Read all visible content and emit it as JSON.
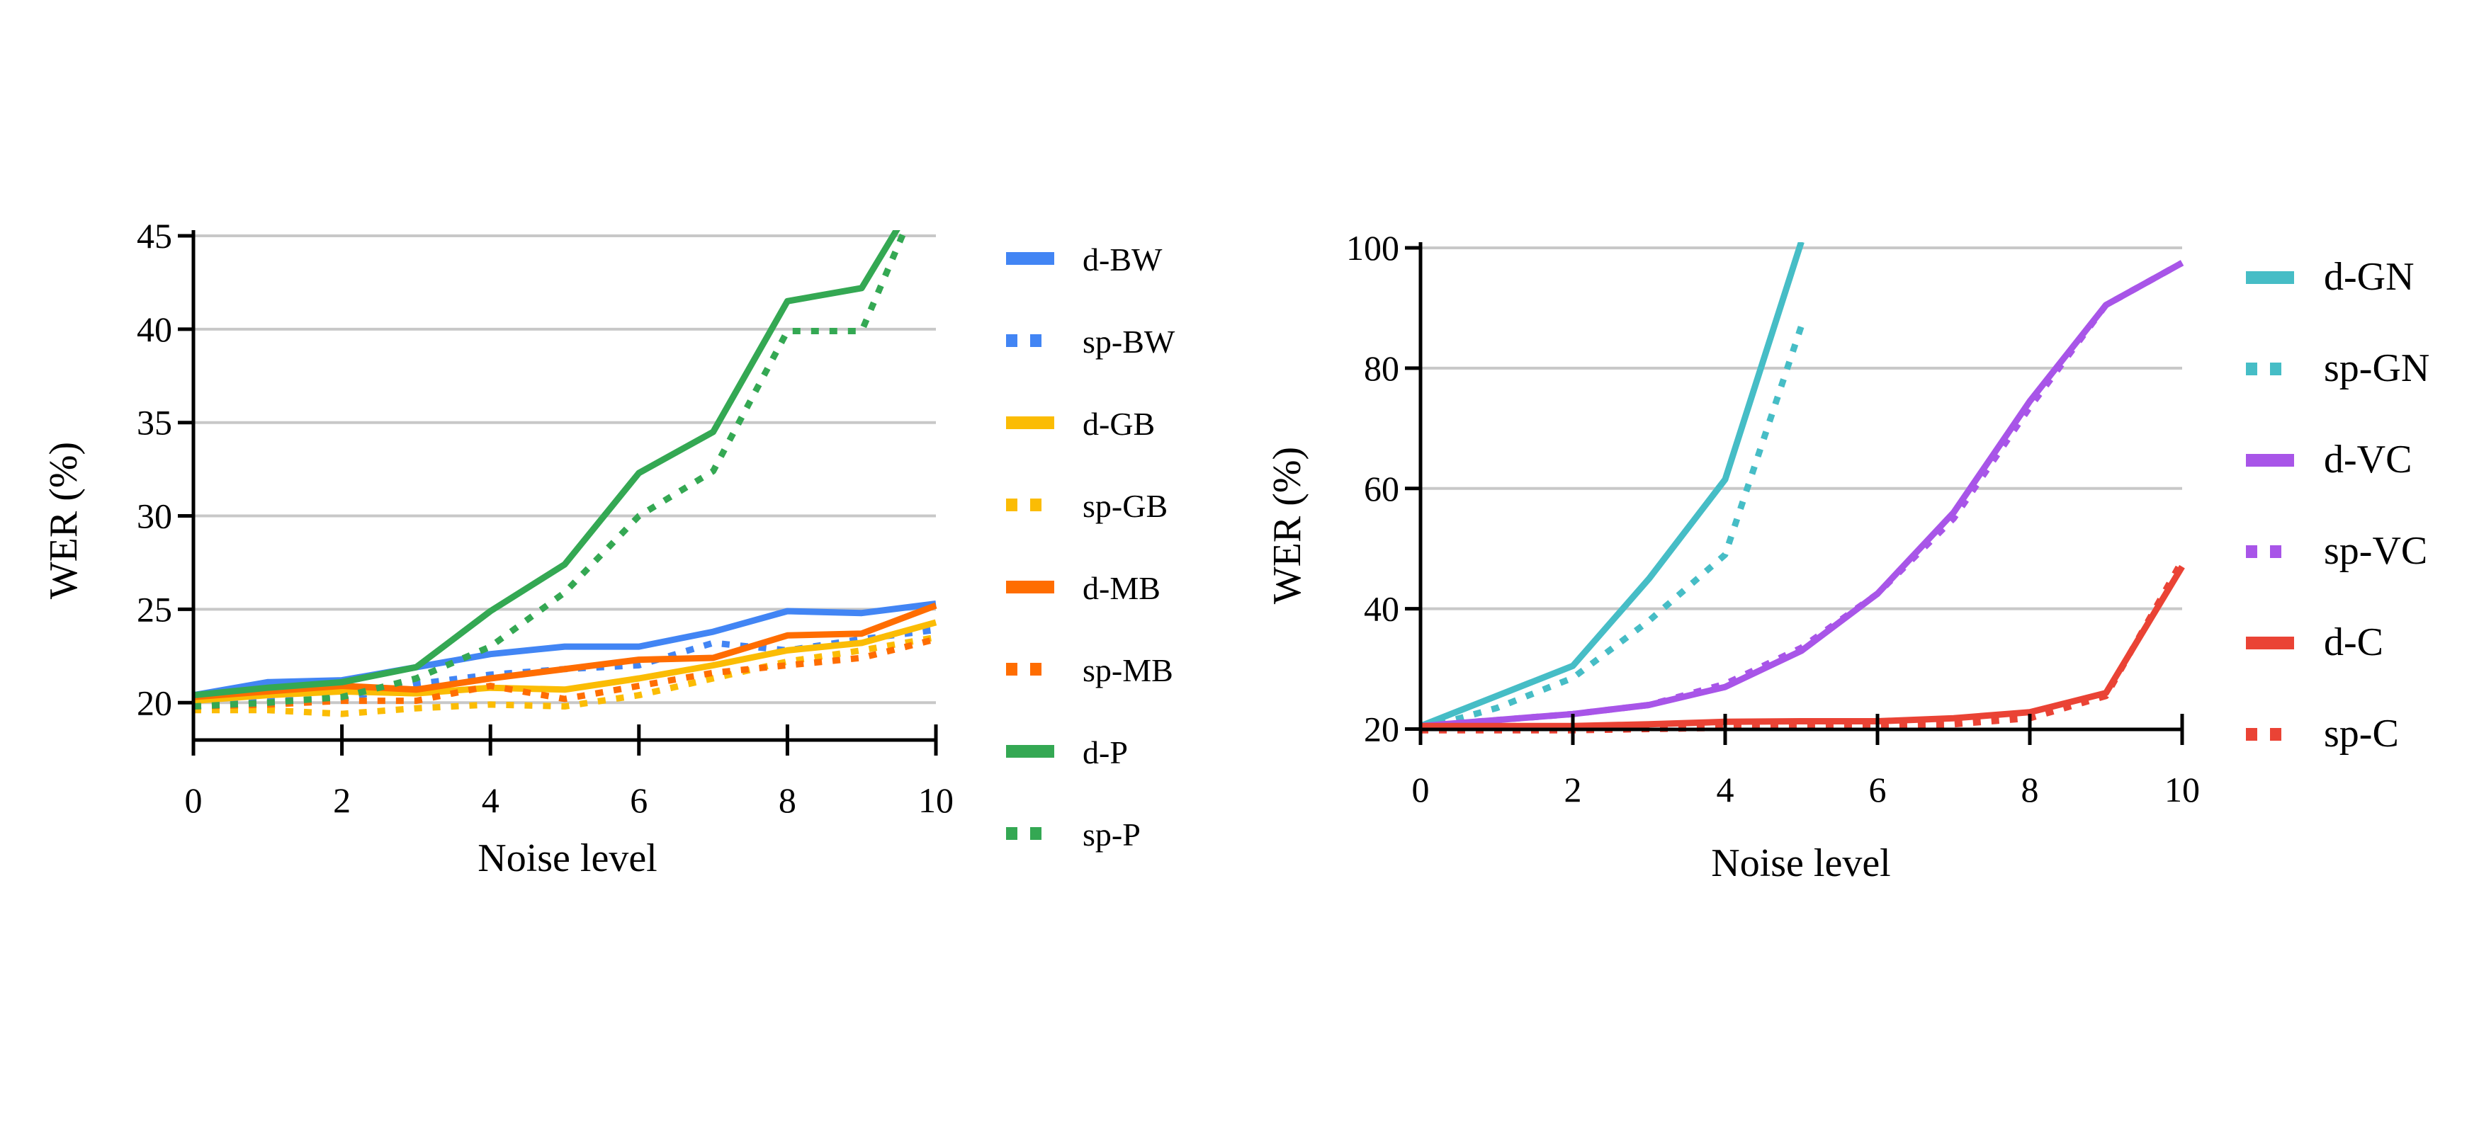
{
  "chart_data": [
    {
      "type": "line",
      "title": "",
      "xlabel": "Noise level",
      "ylabel": "WER (%)",
      "xlim": [
        0,
        10
      ],
      "ylim": [
        18,
        45
      ],
      "xticks": [
        0,
        2,
        4,
        6,
        8,
        10
      ],
      "yticks": [
        20,
        25,
        30,
        35,
        40,
        45
      ],
      "grid": "horizontal",
      "legend_position": "right",
      "series": [
        {
          "name": "d-BW",
          "style": "solid",
          "color": "#4285f4",
          "x": [
            0,
            1,
            2,
            3,
            4,
            5,
            6,
            7,
            8,
            9,
            10
          ],
          "y": [
            20.4,
            21.1,
            21.2,
            21.9,
            22.6,
            23.0,
            23.0,
            23.8,
            24.9,
            24.8,
            25.3
          ]
        },
        {
          "name": "sp-BW",
          "style": "dotted",
          "color": "#4285f4",
          "x": [
            0,
            1,
            2,
            3,
            4,
            5,
            6,
            7,
            8,
            9,
            10
          ],
          "y": [
            20.0,
            20.1,
            20.2,
            21.0,
            21.5,
            21.8,
            22.0,
            23.2,
            22.8,
            23.4,
            23.9
          ]
        },
        {
          "name": "d-GB",
          "style": "solid",
          "color": "#fbbc04",
          "x": [
            0,
            1,
            2,
            3,
            4,
            5,
            6,
            7,
            8,
            9,
            10
          ],
          "y": [
            20.1,
            20.4,
            20.6,
            20.5,
            20.8,
            20.7,
            21.3,
            22.0,
            22.8,
            23.2,
            24.3
          ]
        },
        {
          "name": "sp-GB",
          "style": "dotted",
          "color": "#fbbc04",
          "x": [
            0,
            1,
            2,
            3,
            4,
            5,
            6,
            7,
            8,
            9,
            10
          ],
          "y": [
            19.6,
            19.6,
            19.4,
            19.7,
            19.9,
            19.8,
            20.4,
            21.3,
            22.2,
            22.8,
            23.5
          ]
        },
        {
          "name": "d-MB",
          "style": "solid",
          "color": "#ff6d01",
          "x": [
            0,
            1,
            2,
            3,
            4,
            5,
            6,
            7,
            8,
            9,
            10
          ],
          "y": [
            20.3,
            20.6,
            20.9,
            20.7,
            21.3,
            21.8,
            22.3,
            22.4,
            23.6,
            23.7,
            25.2
          ]
        },
        {
          "name": "sp-MB",
          "style": "dotted",
          "color": "#ff6d01",
          "x": [
            0,
            1,
            2,
            3,
            4,
            5,
            6,
            7,
            8,
            9,
            10
          ],
          "y": [
            19.8,
            19.9,
            20.1,
            20.1,
            20.9,
            20.2,
            20.9,
            21.6,
            22.0,
            22.4,
            23.4
          ]
        },
        {
          "name": "d-P",
          "style": "solid",
          "color": "#34a853",
          "x": [
            0,
            1,
            2,
            3,
            4,
            5,
            6,
            7,
            8,
            9,
            9.5
          ],
          "y": [
            20.4,
            20.8,
            21.1,
            21.9,
            24.9,
            27.4,
            32.3,
            34.5,
            41.5,
            42.2,
            45.5
          ]
        },
        {
          "name": "sp-P",
          "style": "dotted",
          "color": "#34a853",
          "x": [
            0,
            1,
            2,
            3,
            4,
            5,
            6,
            7,
            8,
            9,
            9.6
          ],
          "y": [
            19.8,
            20.0,
            20.3,
            21.3,
            23.0,
            25.9,
            30.0,
            32.4,
            39.9,
            39.9,
            45.5
          ]
        }
      ]
    },
    {
      "type": "line",
      "title": "",
      "xlabel": "Noise level",
      "ylabel": "WER (%)",
      "xlim": [
        0,
        10
      ],
      "ylim": [
        17,
        100
      ],
      "xticks": [
        0,
        2,
        4,
        6,
        8,
        10
      ],
      "yticks": [
        20,
        40,
        60,
        80,
        100
      ],
      "grid": "horizontal",
      "legend_position": "right",
      "series": [
        {
          "name": "d-GN",
          "style": "solid",
          "color": "#46bdc6",
          "x": [
            0,
            1,
            2,
            3,
            4,
            5
          ],
          "y": [
            20.5,
            25.5,
            30.5,
            45.0,
            61.5,
            101.0
          ]
        },
        {
          "name": "sp-GN",
          "style": "dotted",
          "color": "#46bdc6",
          "x": [
            0,
            1,
            2,
            3,
            4,
            5
          ],
          "y": [
            20.0,
            23.5,
            28.5,
            38.0,
            49.0,
            87.0
          ]
        },
        {
          "name": "d-VC",
          "style": "solid",
          "color": "#a855e8",
          "x": [
            0,
            1,
            2,
            3,
            4,
            5,
            6,
            7,
            8,
            9,
            10
          ],
          "y": [
            20.5,
            21.5,
            22.5,
            24.0,
            27.0,
            33.0,
            42.5,
            56.0,
            74.5,
            90.5,
            97.5
          ]
        },
        {
          "name": "sp-VC",
          "style": "dotted",
          "color": "#a855e8",
          "x": [
            0,
            1,
            2,
            3,
            4,
            5,
            6,
            7,
            8,
            9,
            10
          ],
          "y": [
            20.5,
            21.5,
            22.5,
            24.0,
            27.5,
            33.5,
            42.5,
            55.0,
            73.5,
            90.5,
            97.5
          ]
        },
        {
          "name": "d-C",
          "style": "solid",
          "color": "#ea4335",
          "x": [
            0,
            1,
            2,
            3,
            4,
            5,
            6,
            7,
            8,
            9,
            10
          ],
          "y": [
            20.5,
            20.5,
            20.5,
            20.8,
            21.2,
            21.3,
            21.3,
            21.8,
            22.8,
            26.0,
            47.0
          ]
        },
        {
          "name": "sp-C",
          "style": "dotted",
          "color": "#ea4335",
          "x": [
            0,
            1,
            2,
            3,
            4,
            5,
            6,
            7,
            8,
            9,
            10
          ],
          "y": [
            19.8,
            19.8,
            19.8,
            20.0,
            20.2,
            20.3,
            20.5,
            20.8,
            21.8,
            25.5,
            48.0
          ]
        }
      ]
    }
  ]
}
